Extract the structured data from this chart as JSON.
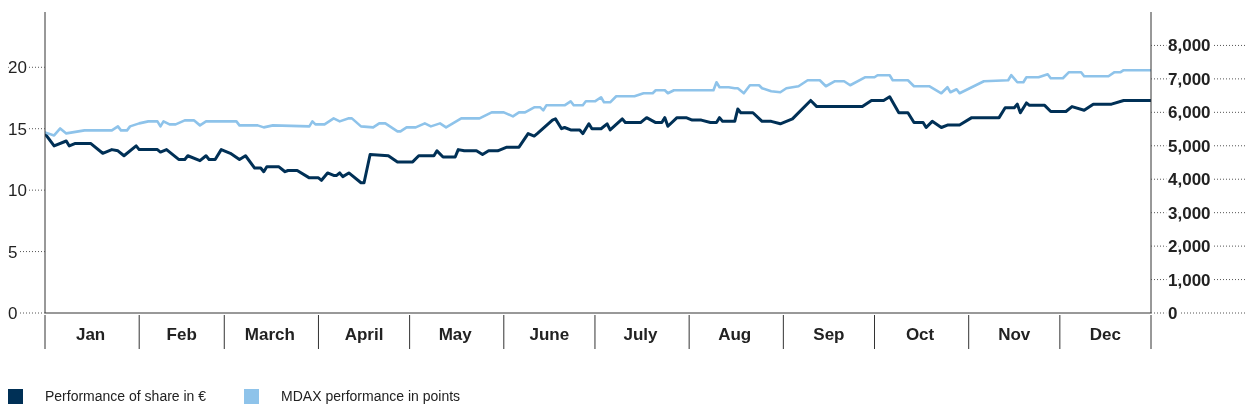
{
  "chart_data": {
    "type": "line",
    "xlim": [
      "--01-01",
      "--12-31"
    ],
    "xticks": [
      {
        "value": "--01-01",
        "label": null
      },
      {
        "value": "--01-16",
        "label": "Jan"
      },
      {
        "value": "--02-01",
        "label": null
      },
      {
        "value": "--02-15",
        "label": "Feb"
      },
      {
        "value": "--03-01",
        "label": null
      },
      {
        "value": "--03-16",
        "label": "March"
      },
      {
        "value": "--04-01",
        "label": null
      },
      {
        "value": "--04-16",
        "label": "April"
      },
      {
        "value": "--05-01",
        "label": null
      },
      {
        "value": "--05-16",
        "label": "May"
      },
      {
        "value": "--06-01",
        "label": null
      },
      {
        "value": "--06-16",
        "label": "June"
      },
      {
        "value": "--07-01",
        "label": null
      },
      {
        "value": "--07-16",
        "label": "July"
      },
      {
        "value": "--08-01",
        "label": null
      },
      {
        "value": "--08-16",
        "label": "Aug"
      },
      {
        "value": "--09-01",
        "label": null
      },
      {
        "value": "--09-16",
        "label": "Sep"
      },
      {
        "value": "--10-01",
        "label": null
      },
      {
        "value": "--10-16",
        "label": "Oct"
      },
      {
        "value": "--11-01",
        "label": null
      },
      {
        "value": "--11-16",
        "label": "Nov"
      },
      {
        "value": "--12-01",
        "label": null
      },
      {
        "value": "--12-16",
        "label": "Dec"
      },
      {
        "value": "--12-31",
        "label": null
      }
    ],
    "ylim": [
      0,
      24.5
    ],
    "yticks": [
      0,
      5,
      10,
      15,
      20
    ],
    "y2lim": [
      0,
      9000
    ],
    "y2ticks": [
      {
        "value": 0,
        "label": "0"
      },
      {
        "value": 1000,
        "label": "1,000"
      },
      {
        "value": 2000,
        "label": "2,000"
      },
      {
        "value": 3000,
        "label": "3,000"
      },
      {
        "value": 4000,
        "label": "4,000"
      },
      {
        "value": 5000,
        "label": "5,000"
      },
      {
        "value": 6000,
        "label": "6,000"
      },
      {
        "value": 7000,
        "label": "7,000"
      },
      {
        "value": 8000,
        "label": "8,000"
      }
    ],
    "marker": "none",
    "line_style": "solid",
    "legend": "bottom left",
    "series": [
      {
        "name": "Performance of share in €",
        "color": "#003056",
        "x": [
          "--01-01",
          "--01-04",
          "--01-08",
          "--01-09",
          "--01-11",
          "--01-16",
          "--01-20",
          "--01-23",
          "--01-25",
          "--01-27",
          "--01-31",
          "--02-01",
          "--02-07",
          "--02-08",
          "--02-10",
          "--02-14",
          "--02-16",
          "--02-17",
          "--02-21",
          "--02-23",
          "--02-24",
          "--02-26",
          "--02-28",
          "--03-03",
          "--03-06",
          "--03-08",
          "--03-11",
          "--03-13",
          "--03-14",
          "--03-15",
          "--03-19",
          "--03-21",
          "--03-22",
          "--03-25",
          "--03-29",
          "--04-01",
          "--04-02",
          "--04-04",
          "--04-06",
          "--04-07",
          "--04-08",
          "--04-09",
          "--04-11",
          "--04-15",
          "--04-16",
          "--04-18",
          "--04-24",
          "--04-27",
          "--05-02",
          "--05-04",
          "--05-09",
          "--05-10",
          "--05-12",
          "--05-16",
          "--05-17",
          "--05-19",
          "--05-23",
          "--05-25",
          "--05-27",
          "--05-30",
          "--06-02",
          "--06-06",
          "--06-09",
          "--06-11",
          "--06-12",
          "--06-17",
          "--06-18",
          "--06-20",
          "--06-21",
          "--06-23",
          "--06-26",
          "--06-27",
          "--06-29",
          "--06-30",
          "--07-03",
          "--07-05",
          "--07-06",
          "--07-10",
          "--07-11",
          "--07-16",
          "--07-18",
          "--07-21",
          "--07-23",
          "--07-24",
          "--07-25",
          "--07-28",
          "--07-31",
          "--08-02",
          "--08-05",
          "--08-08",
          "--08-10",
          "--08-11",
          "--08-12",
          "--08-16",
          "--08-17",
          "--08-18",
          "--08-22",
          "--08-25",
          "--08-28",
          "--08-31",
          "--09-04",
          "--09-10",
          "--09-12",
          "--09-27",
          "--09-30",
          "--10-04",
          "--10-06",
          "--10-09",
          "--10-12",
          "--10-14",
          "--10-17",
          "--10-18",
          "--10-20",
          "--10-23",
          "--10-25",
          "--10-29",
          "--11-02",
          "--11-11",
          "--11-13",
          "--11-16",
          "--11-17",
          "--11-18",
          "--11-20",
          "--11-21",
          "--11-26",
          "--11-28",
          "--12-03",
          "--12-05",
          "--12-09",
          "--12-12",
          "--12-18",
          "--12-22",
          "--12-31"
        ],
        "values": [
          14.6,
          13.6,
          14.0,
          13.6,
          13.8,
          13.8,
          13.0,
          13.3,
          13.2,
          12.8,
          13.6,
          13.3,
          13.3,
          13.1,
          13.3,
          12.5,
          12.5,
          12.8,
          12.4,
          12.8,
          12.5,
          12.5,
          13.3,
          13.0,
          12.5,
          12.8,
          11.8,
          11.8,
          11.5,
          11.9,
          11.9,
          11.5,
          11.6,
          11.6,
          11.0,
          11.0,
          10.8,
          11.4,
          11.2,
          11.2,
          11.4,
          11.1,
          11.4,
          10.6,
          10.6,
          12.9,
          12.8,
          12.3,
          12.3,
          12.8,
          12.8,
          13.2,
          12.7,
          12.7,
          13.3,
          13.2,
          13.2,
          12.9,
          13.2,
          13.2,
          13.5,
          13.5,
          14.6,
          14.4,
          14.6,
          15.7,
          15.8,
          15.0,
          15.1,
          14.9,
          14.9,
          14.6,
          15.4,
          15.0,
          15.0,
          15.4,
          14.9,
          15.8,
          15.5,
          15.5,
          15.9,
          15.5,
          15.5,
          15.9,
          15.2,
          15.9,
          15.9,
          15.7,
          15.7,
          15.5,
          15.5,
          15.9,
          15.6,
          15.6,
          16.6,
          16.3,
          16.3,
          15.6,
          15.6,
          15.4,
          15.8,
          17.3,
          16.8,
          16.8,
          17.3,
          17.3,
          17.6,
          16.3,
          16.3,
          15.5,
          15.5,
          15.1,
          15.6,
          15.1,
          15.3,
          15.3,
          15.9,
          15.9,
          16.7,
          16.7,
          17.0,
          16.3,
          17.1,
          16.9,
          16.9,
          16.4,
          16.4,
          16.8,
          16.5,
          17.0,
          17.0,
          17.3,
          17.3
        ]
      },
      {
        "name": "MDAX performance in points",
        "color": "#8ec3ea",
        "axis": "y2",
        "x": [
          "--01-01",
          "--01-04",
          "--01-06",
          "--01-08",
          "--01-14",
          "--01-23",
          "--01-25",
          "--01-26",
          "--01-28",
          "--01-29",
          "--02-01",
          "--02-04",
          "--02-07",
          "--02-08",
          "--02-09",
          "--02-11",
          "--02-13",
          "--02-16",
          "--02-19",
          "--02-21",
          "--02-23",
          "--03-05",
          "--03-06",
          "--03-12",
          "--03-14",
          "--03-17",
          "--03-29",
          "--03-30",
          "--03-31",
          "--04-03",
          "--04-06",
          "--04-08",
          "--04-11",
          "--04-12",
          "--04-15",
          "--04-19",
          "--04-21",
          "--04-23",
          "--04-27",
          "--04-28",
          "--04-30",
          "--05-03",
          "--05-06",
          "--05-08",
          "--05-11",
          "--05-13",
          "--05-18",
          "--05-24",
          "--05-26",
          "--05-28",
          "--06-01",
          "--06-04",
          "--06-06",
          "--06-08",
          "--06-11",
          "--06-13",
          "--06-14",
          "--06-15",
          "--06-21",
          "--06-23",
          "--06-24",
          "--06-27",
          "--06-28",
          "--07-01",
          "--07-03",
          "--07-04",
          "--07-06",
          "--07-08",
          "--07-14",
          "--07-17",
          "--07-20",
          "--07-21",
          "--07-24",
          "--07-25",
          "--07-27",
          "--08-09",
          "--08-10",
          "--08-11",
          "--08-14",
          "--08-16",
          "--08-17",
          "--08-19",
          "--08-21",
          "--08-24",
          "--08-25",
          "--08-28",
          "--08-31",
          "--09-02",
          "--09-06",
          "--09-09",
          "--09-13",
          "--09-15",
          "--09-18",
          "--09-21",
          "--09-23",
          "--09-28",
          "--10-01",
          "--10-02",
          "--10-06",
          "--10-07",
          "--10-12",
          "--10-14",
          "--10-19",
          "--10-23",
          "--10-25",
          "--10-26",
          "--10-28",
          "--10-29",
          "--11-06",
          "--11-14",
          "--11-15",
          "--11-17",
          "--11-19",
          "--11-20",
          "--11-24",
          "--11-27",
          "--11-28",
          "--12-02",
          "--12-04",
          "--12-08",
          "--12-09",
          "--12-17",
          "--12-19",
          "--12-21",
          "--12-22",
          "--12-31"
        ],
        "values": [
          5400,
          5310,
          5520,
          5370,
          5460,
          5460,
          5580,
          5460,
          5460,
          5580,
          5670,
          5730,
          5730,
          5580,
          5730,
          5640,
          5640,
          5760,
          5760,
          5610,
          5730,
          5730,
          5610,
          5610,
          5550,
          5610,
          5580,
          5730,
          5640,
          5640,
          5820,
          5730,
          5820,
          5820,
          5580,
          5550,
          5670,
          5670,
          5430,
          5430,
          5550,
          5550,
          5670,
          5580,
          5670,
          5550,
          5820,
          5820,
          5910,
          6000,
          6000,
          5880,
          6000,
          6000,
          6150,
          6150,
          6060,
          6210,
          6210,
          6330,
          6210,
          6210,
          6330,
          6330,
          6450,
          6300,
          6300,
          6480,
          6480,
          6570,
          6570,
          6660,
          6660,
          6570,
          6660,
          6660,
          6900,
          6750,
          6750,
          6720,
          6720,
          6570,
          6810,
          6810,
          6720,
          6630,
          6600,
          6720,
          6780,
          6960,
          6960,
          6780,
          6930,
          6930,
          6810,
          7050,
          7050,
          7110,
          7110,
          6960,
          6960,
          6780,
          6780,
          6570,
          6750,
          6600,
          6690,
          6570,
          6930,
          6960,
          7110,
          6900,
          6900,
          7050,
          7050,
          7140,
          7020,
          7020,
          7200,
          7200,
          7080,
          7080,
          7200,
          7200,
          7260,
          7260
        ]
      }
    ]
  }
}
